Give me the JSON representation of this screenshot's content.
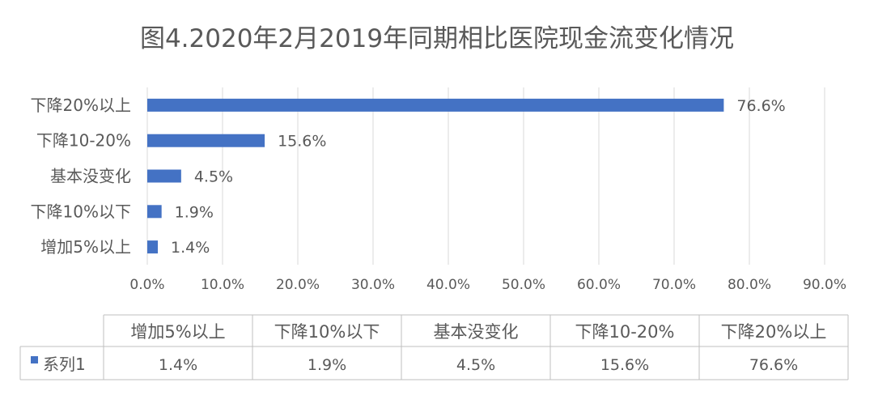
{
  "chart_data": {
    "type": "bar",
    "orientation": "horizontal",
    "title": "图4.2020年2月2019年同期相比医院现金流变化情况",
    "categories": [
      "下降20%以上",
      "下降10-20%",
      "基本没变化",
      "下降10%以下",
      "增加5%以上"
    ],
    "series": [
      {
        "name": "系列1",
        "values": [
          76.6,
          15.6,
          4.5,
          1.9,
          1.4
        ],
        "value_labels": [
          "76.6%",
          "15.6%",
          "4.5%",
          "1.9%",
          "1.4%"
        ],
        "color": "#4472C4"
      }
    ],
    "xlim": [
      0,
      90
    ],
    "x_ticks": [
      0,
      10,
      20,
      30,
      40,
      50,
      60,
      70,
      80,
      90
    ],
    "x_tick_labels": [
      "0.0%",
      "10.0%",
      "20.0%",
      "30.0%",
      "40.0%",
      "50.0%",
      "60.0%",
      "70.0%",
      "80.0%",
      "90.0%"
    ],
    "grid": true,
    "grid_color": "#D9D9D9",
    "data_table": {
      "columns": [
        "增加5%以上",
        "下降10%以下",
        "基本没变化",
        "下降10-20%",
        "下降20%以上"
      ],
      "rows": [
        {
          "label": "系列1",
          "values": [
            "1.4%",
            "1.9%",
            "4.5%",
            "15.6%",
            "76.6%"
          ]
        }
      ]
    }
  }
}
